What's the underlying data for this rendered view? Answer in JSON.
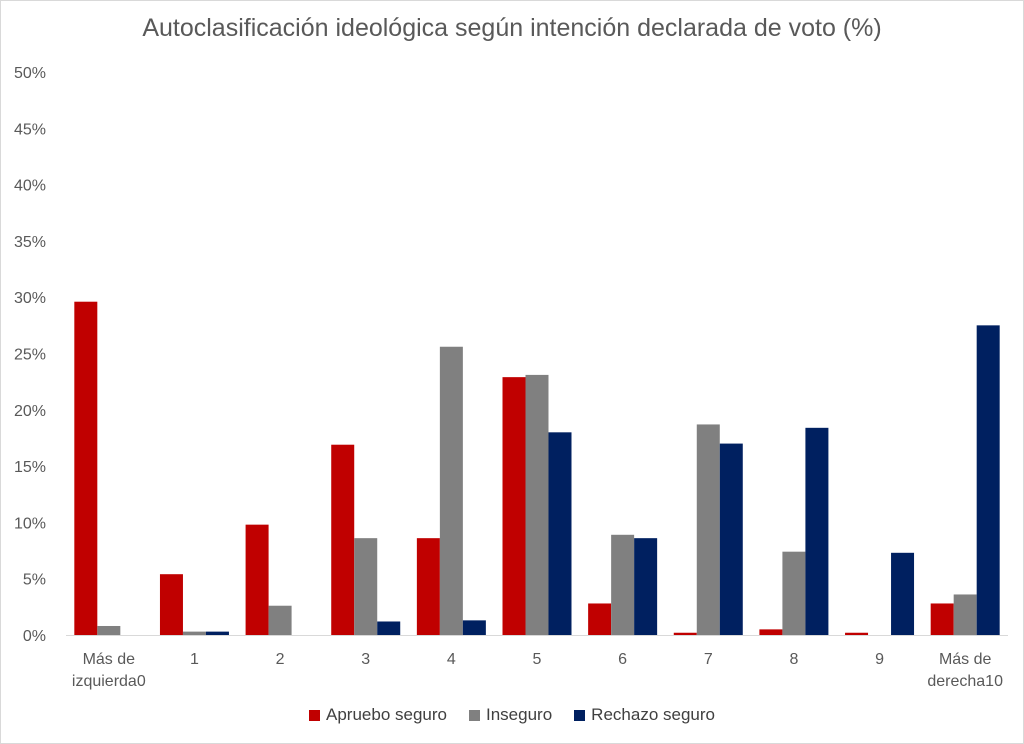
{
  "chart_data": {
    "type": "bar",
    "title": "Autoclasificación ideológica según intención declarada de voto (%)",
    "xlabel": "",
    "ylabel": "",
    "ylim": [
      0,
      50
    ],
    "yticks": [
      "0%",
      "5%",
      "10%",
      "15%",
      "20%",
      "25%",
      "30%",
      "35%",
      "40%",
      "45%",
      "50%"
    ],
    "categories": [
      [
        "Más de",
        "izquierda0"
      ],
      [
        "1"
      ],
      [
        "2"
      ],
      [
        "3"
      ],
      [
        "4"
      ],
      [
        "5"
      ],
      [
        "6"
      ],
      [
        "7"
      ],
      [
        "8"
      ],
      [
        "9"
      ],
      [
        "Más de",
        "derecha10"
      ]
    ],
    "series": [
      {
        "name": "Apruebo seguro",
        "color": "#c00000",
        "values": [
          29.6,
          5.4,
          9.8,
          16.9,
          8.6,
          22.9,
          2.8,
          0.2,
          0.5,
          0.2,
          2.8
        ]
      },
      {
        "name": "Inseguro",
        "color": "#808080",
        "values": [
          0.8,
          0.3,
          2.6,
          8.6,
          25.6,
          23.1,
          8.9,
          18.7,
          7.4,
          0,
          3.6
        ]
      },
      {
        "name": "Rechazo seguro",
        "color": "#002060",
        "values": [
          0,
          0.3,
          0,
          1.2,
          1.3,
          18.0,
          8.6,
          17.0,
          18.4,
          7.3,
          27.5
        ]
      }
    ],
    "grid": false,
    "legend": "bottom"
  }
}
